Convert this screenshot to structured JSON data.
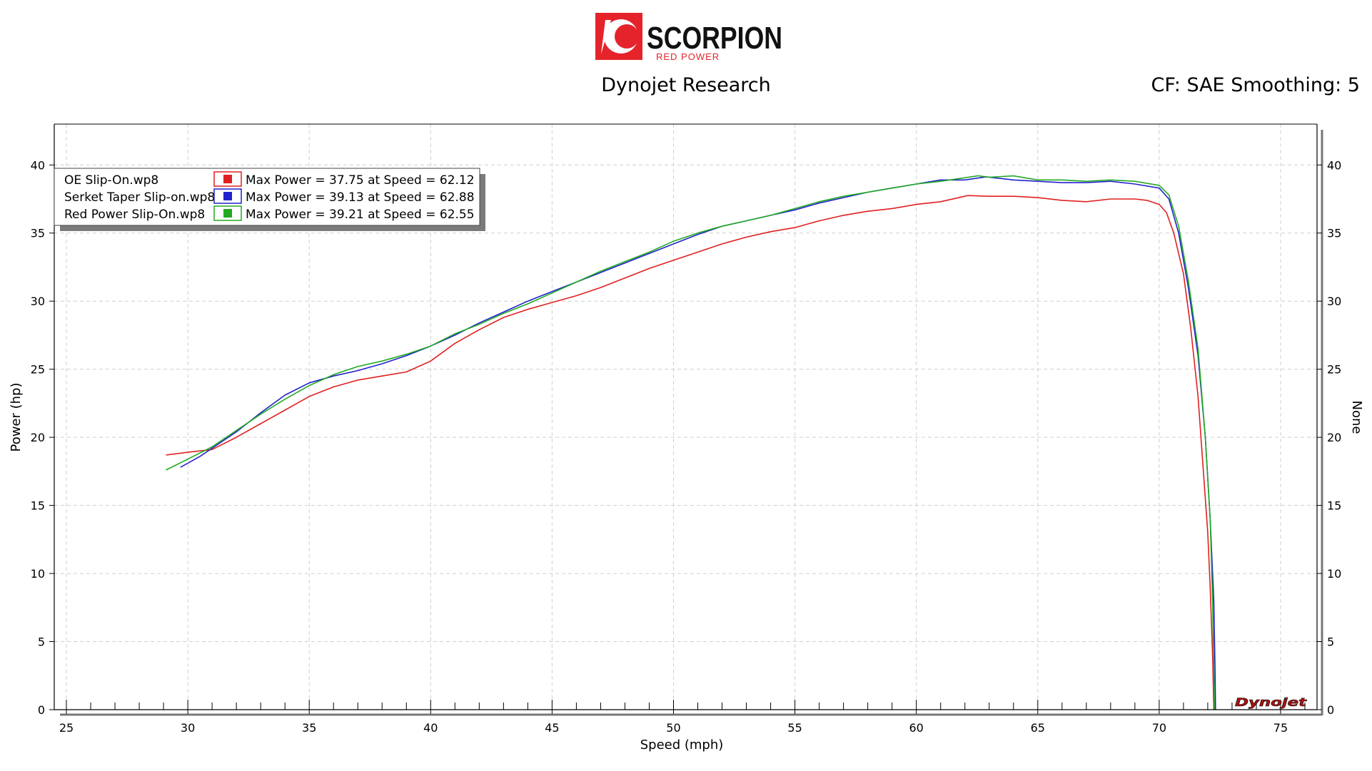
{
  "header": {
    "brand": "SCORPION",
    "brand_sub": "RED POWER",
    "title": "Dynojet Research",
    "cf_text": "CF: SAE Smoothing: 5",
    "watermark": "Dynojet"
  },
  "colors": {
    "oe": "#e02020",
    "serket": "#2222cc",
    "redpower": "#22aa22",
    "brand_red": "#e5232a"
  },
  "chart_data": {
    "type": "line",
    "xlabel": "Speed (mph)",
    "ylabel": "Power (hp)",
    "y2label": "None",
    "xlim": [
      24.5,
      76.5
    ],
    "ylim": [
      0,
      43
    ],
    "x_ticks": [
      25,
      30,
      35,
      40,
      45,
      50,
      55,
      60,
      65,
      70,
      75
    ],
    "y_ticks": [
      0,
      5,
      10,
      15,
      20,
      25,
      30,
      35,
      40
    ],
    "grid": true,
    "legend_position": "top-left",
    "series": [
      {
        "name": "OE Slip-On.wp8",
        "key": "oe",
        "summary": "Max Power = 37.75 at Speed = 62.12",
        "points": [
          [
            29.1,
            18.7
          ],
          [
            30,
            18.9
          ],
          [
            30.5,
            19
          ],
          [
            31,
            19.1
          ],
          [
            32,
            20
          ],
          [
            33,
            21
          ],
          [
            34,
            22
          ],
          [
            35,
            23
          ],
          [
            36,
            23.7
          ],
          [
            37,
            24.2
          ],
          [
            38,
            24.5
          ],
          [
            39,
            24.8
          ],
          [
            40,
            25.6
          ],
          [
            41,
            26.9
          ],
          [
            42,
            27.9
          ],
          [
            43,
            28.8
          ],
          [
            44,
            29.4
          ],
          [
            45,
            29.9
          ],
          [
            46,
            30.4
          ],
          [
            47,
            31
          ],
          [
            48,
            31.7
          ],
          [
            49,
            32.4
          ],
          [
            50,
            33
          ],
          [
            51,
            33.6
          ],
          [
            52,
            34.2
          ],
          [
            53,
            34.7
          ],
          [
            54,
            35.1
          ],
          [
            55,
            35.4
          ],
          [
            56,
            35.9
          ],
          [
            57,
            36.3
          ],
          [
            58,
            36.6
          ],
          [
            59,
            36.8
          ],
          [
            60,
            37.1
          ],
          [
            61,
            37.3
          ],
          [
            62.12,
            37.75
          ],
          [
            63,
            37.7
          ],
          [
            64,
            37.7
          ],
          [
            65,
            37.6
          ],
          [
            66,
            37.4
          ],
          [
            67,
            37.3
          ],
          [
            68,
            37.5
          ],
          [
            69,
            37.5
          ],
          [
            69.5,
            37.4
          ],
          [
            70,
            37.1
          ],
          [
            70.3,
            36.5
          ],
          [
            70.6,
            35
          ],
          [
            71,
            32
          ],
          [
            71.3,
            28
          ],
          [
            71.6,
            23
          ],
          [
            71.8,
            18
          ],
          [
            72,
            13
          ],
          [
            72.1,
            9
          ],
          [
            72.2,
            4
          ],
          [
            72.25,
            0
          ]
        ]
      },
      {
        "name": "Serket Taper Slip-on.wp8",
        "key": "serket",
        "summary": "Max Power = 39.13 at Speed = 62.88",
        "points": [
          [
            29.7,
            17.8
          ],
          [
            30.5,
            18.6
          ],
          [
            31,
            19.2
          ],
          [
            32,
            20.4
          ],
          [
            33,
            21.8
          ],
          [
            34,
            23.1
          ],
          [
            35,
            24
          ],
          [
            36,
            24.5
          ],
          [
            37,
            24.9
          ],
          [
            38,
            25.4
          ],
          [
            39,
            26
          ],
          [
            40,
            26.7
          ],
          [
            41,
            27.5
          ],
          [
            42,
            28.4
          ],
          [
            43,
            29.2
          ],
          [
            44,
            30
          ],
          [
            45,
            30.7
          ],
          [
            46,
            31.4
          ],
          [
            47,
            32.1
          ],
          [
            48,
            32.8
          ],
          [
            49,
            33.5
          ],
          [
            50,
            34.2
          ],
          [
            51,
            34.9
          ],
          [
            52,
            35.5
          ],
          [
            53,
            35.9
          ],
          [
            54,
            36.3
          ],
          [
            55,
            36.7
          ],
          [
            56,
            37.2
          ],
          [
            57,
            37.6
          ],
          [
            58,
            38
          ],
          [
            59,
            38.3
          ],
          [
            60,
            38.6
          ],
          [
            61,
            38.9
          ],
          [
            62,
            38.9
          ],
          [
            62.88,
            39.13
          ],
          [
            64,
            38.9
          ],
          [
            65,
            38.8
          ],
          [
            66,
            38.7
          ],
          [
            67,
            38.7
          ],
          [
            68,
            38.8
          ],
          [
            69,
            38.6
          ],
          [
            70,
            38.3
          ],
          [
            70.4,
            37.5
          ],
          [
            70.8,
            35
          ],
          [
            71.2,
            31
          ],
          [
            71.6,
            26
          ],
          [
            71.9,
            20
          ],
          [
            72.1,
            14
          ],
          [
            72.25,
            8
          ],
          [
            72.3,
            3
          ],
          [
            72.32,
            0
          ]
        ]
      },
      {
        "name": "Red Power Slip-On.wp8",
        "key": "redpower",
        "summary": "Max Power = 39.21 at Speed = 62.55",
        "points": [
          [
            29.1,
            17.6
          ],
          [
            30,
            18.4
          ],
          [
            31,
            19.3
          ],
          [
            32,
            20.5
          ],
          [
            33,
            21.7
          ],
          [
            34,
            22.8
          ],
          [
            35,
            23.8
          ],
          [
            36,
            24.6
          ],
          [
            37,
            25.2
          ],
          [
            38,
            25.6
          ],
          [
            39,
            26.1
          ],
          [
            40,
            26.7
          ],
          [
            41,
            27.6
          ],
          [
            42,
            28.3
          ],
          [
            43,
            29.1
          ],
          [
            44,
            29.8
          ],
          [
            45,
            30.6
          ],
          [
            46,
            31.4
          ],
          [
            47,
            32.2
          ],
          [
            48,
            32.9
          ],
          [
            49,
            33.6
          ],
          [
            50,
            34.4
          ],
          [
            51,
            35
          ],
          [
            52,
            35.5
          ],
          [
            53,
            35.9
          ],
          [
            54,
            36.3
          ],
          [
            55,
            36.8
          ],
          [
            56,
            37.3
          ],
          [
            57,
            37.7
          ],
          [
            58,
            38
          ],
          [
            59,
            38.3
          ],
          [
            60,
            38.6
          ],
          [
            61,
            38.8
          ],
          [
            62.55,
            39.21
          ],
          [
            63,
            39.1
          ],
          [
            64,
            39.2
          ],
          [
            65,
            38.9
          ],
          [
            66,
            38.9
          ],
          [
            67,
            38.8
          ],
          [
            68,
            38.9
          ],
          [
            69,
            38.8
          ],
          [
            70,
            38.5
          ],
          [
            70.4,
            37.8
          ],
          [
            70.8,
            35.5
          ],
          [
            71.2,
            31.5
          ],
          [
            71.6,
            26.5
          ],
          [
            71.9,
            20
          ],
          [
            72.1,
            14
          ],
          [
            72.2,
            8
          ],
          [
            72.25,
            3
          ],
          [
            72.28,
            0
          ]
        ]
      }
    ]
  }
}
